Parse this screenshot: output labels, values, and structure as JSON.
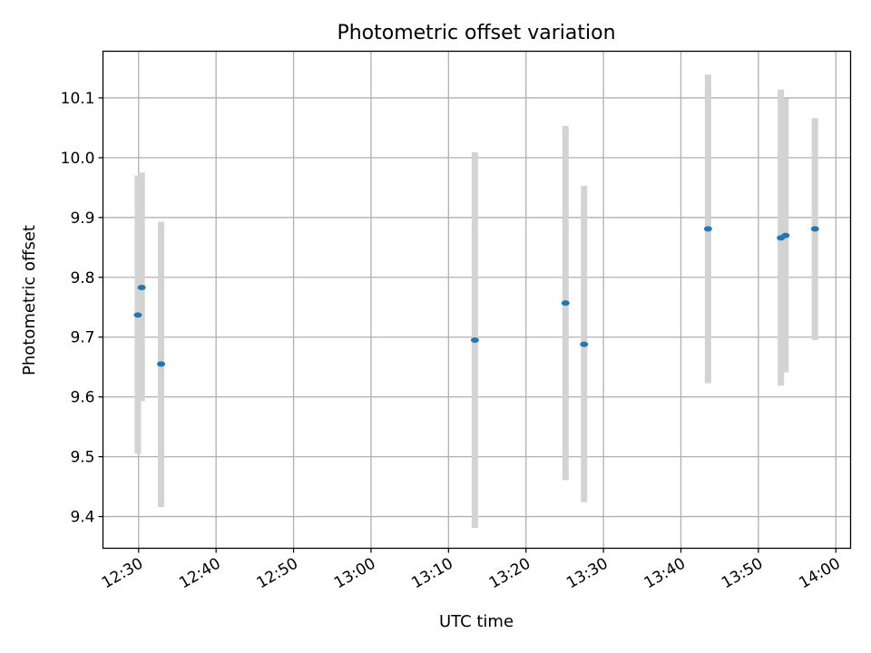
{
  "chart_data": {
    "type": "scatter",
    "title": "Photometric offset variation",
    "xlabel": "UTC time",
    "ylabel": "Photometric offset",
    "x_ticks": [
      "12:30",
      "12:40",
      "12:50",
      "13:00",
      "13:10",
      "13:20",
      "13:30",
      "13:40",
      "13:50",
      "14:00"
    ],
    "y_ticks": [
      "9.4",
      "9.5",
      "9.6",
      "9.7",
      "9.8",
      "9.9",
      "10.0",
      "10.1"
    ],
    "xlim": [
      "12:25.4",
      "14:01.9"
    ],
    "ylim": [
      9.347,
      10.178
    ],
    "grid": true,
    "legend": false,
    "marker_color": "#1f77b4",
    "errorbar_color": "#d3d3d3",
    "points": [
      {
        "time": "12:29.9",
        "value": 9.737,
        "low": 9.505,
        "high": 9.97
      },
      {
        "time": "12:30.4",
        "value": 9.783,
        "low": 9.593,
        "high": 9.975
      },
      {
        "time": "12:32.9",
        "value": 9.655,
        "low": 9.416,
        "high": 9.893
      },
      {
        "time": "13:13.4",
        "value": 9.695,
        "low": 9.381,
        "high": 10.009
      },
      {
        "time": "13:25.1",
        "value": 9.757,
        "low": 9.461,
        "high": 10.053
      },
      {
        "time": "13:27.5",
        "value": 9.688,
        "low": 9.424,
        "high": 9.953
      },
      {
        "time": "13:43.5",
        "value": 9.881,
        "low": 9.623,
        "high": 10.139
      },
      {
        "time": "13:52.9",
        "value": 9.866,
        "low": 9.619,
        "high": 10.114
      },
      {
        "time": "13:53.5",
        "value": 9.87,
        "low": 9.641,
        "high": 10.099
      },
      {
        "time": "13:57.3",
        "value": 9.881,
        "low": 9.695,
        "high": 10.066
      }
    ]
  }
}
